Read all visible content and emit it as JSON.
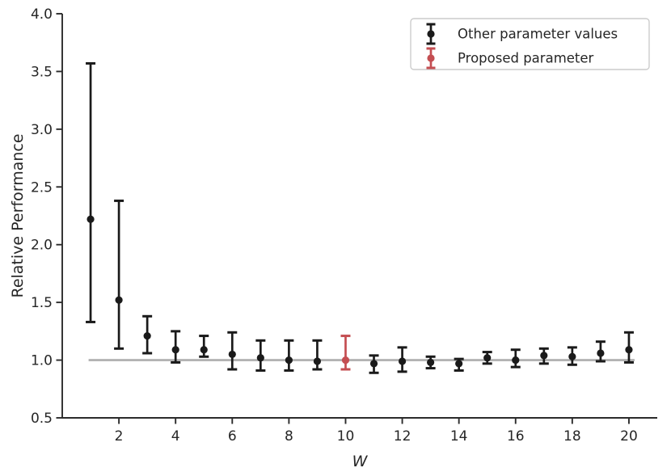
{
  "chart_data": {
    "type": "scatter",
    "subtype": "errorbar",
    "title": "",
    "xlabel": "W",
    "ylabel": "Relative Performance",
    "xlim": [
      0,
      21
    ],
    "ylim": [
      0.5,
      4.0
    ],
    "xticks": [
      2,
      4,
      6,
      8,
      10,
      12,
      14,
      16,
      18,
      20
    ],
    "yticks": [
      0.5,
      1.0,
      1.5,
      2.0,
      2.5,
      3.0,
      3.5,
      4.0
    ],
    "grid": false,
    "legend_position": "upper right",
    "reference_line": {
      "y": 1.0,
      "x_start": 0.93,
      "x_end": 20.2,
      "color": "#b3b3b3"
    },
    "series": [
      {
        "name": "Other parameter values",
        "color": "#1a1a1a",
        "points": [
          {
            "x": 1,
            "y": 2.22,
            "lo": 1.33,
            "hi": 3.57
          },
          {
            "x": 2,
            "y": 1.52,
            "lo": 1.1,
            "hi": 2.38
          },
          {
            "x": 3,
            "y": 1.21,
            "lo": 1.06,
            "hi": 1.38
          },
          {
            "x": 4,
            "y": 1.09,
            "lo": 0.98,
            "hi": 1.25
          },
          {
            "x": 5,
            "y": 1.09,
            "lo": 1.03,
            "hi": 1.21
          },
          {
            "x": 6,
            "y": 1.05,
            "lo": 0.92,
            "hi": 1.24
          },
          {
            "x": 7,
            "y": 1.02,
            "lo": 0.91,
            "hi": 1.17
          },
          {
            "x": 8,
            "y": 1.0,
            "lo": 0.91,
            "hi": 1.17
          },
          {
            "x": 9,
            "y": 0.99,
            "lo": 0.92,
            "hi": 1.17
          },
          {
            "x": 11,
            "y": 0.97,
            "lo": 0.89,
            "hi": 1.04
          },
          {
            "x": 12,
            "y": 0.99,
            "lo": 0.9,
            "hi": 1.11
          },
          {
            "x": 13,
            "y": 0.98,
            "lo": 0.93,
            "hi": 1.03
          },
          {
            "x": 14,
            "y": 0.97,
            "lo": 0.91,
            "hi": 1.01
          },
          {
            "x": 15,
            "y": 1.02,
            "lo": 0.97,
            "hi": 1.07
          },
          {
            "x": 16,
            "y": 1.0,
            "lo": 0.94,
            "hi": 1.09
          },
          {
            "x": 17,
            "y": 1.04,
            "lo": 0.97,
            "hi": 1.1
          },
          {
            "x": 18,
            "y": 1.03,
            "lo": 0.96,
            "hi": 1.11
          },
          {
            "x": 19,
            "y": 1.06,
            "lo": 0.99,
            "hi": 1.16
          },
          {
            "x": 20,
            "y": 1.09,
            "lo": 0.98,
            "hi": 1.24
          }
        ]
      },
      {
        "name": "Proposed parameter",
        "color": "#c44e52",
        "points": [
          {
            "x": 10,
            "y": 1.0,
            "lo": 0.92,
            "hi": 1.21
          }
        ]
      }
    ]
  },
  "colors": {
    "axis": "#2b2b2b",
    "text": "#262626",
    "reference_line": "#b3b3b3",
    "legend_border": "#cccccc",
    "background": "#ffffff"
  }
}
